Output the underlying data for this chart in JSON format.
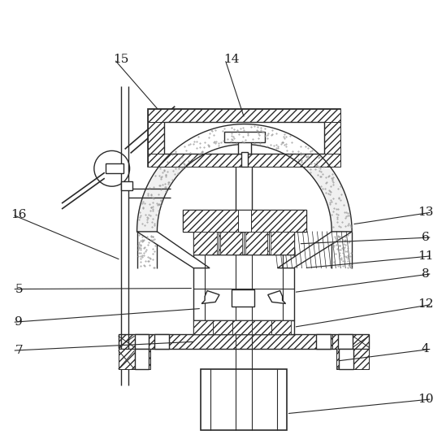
{
  "bg_color": "#ffffff",
  "line_color": "#2a2a2a",
  "lw": 1.0,
  "labels": [
    [
      "4",
      525,
      430
    ],
    [
      "5",
      22,
      356
    ],
    [
      "6",
      525,
      292
    ],
    [
      "7",
      22,
      432
    ],
    [
      "8",
      525,
      337
    ],
    [
      "9",
      22,
      397
    ],
    [
      "10",
      525,
      492
    ],
    [
      "11",
      525,
      315
    ],
    [
      "12",
      525,
      375
    ],
    [
      "13",
      525,
      261
    ],
    [
      "14",
      285,
      72
    ],
    [
      "15",
      148,
      72
    ],
    [
      "16",
      22,
      264
    ]
  ]
}
